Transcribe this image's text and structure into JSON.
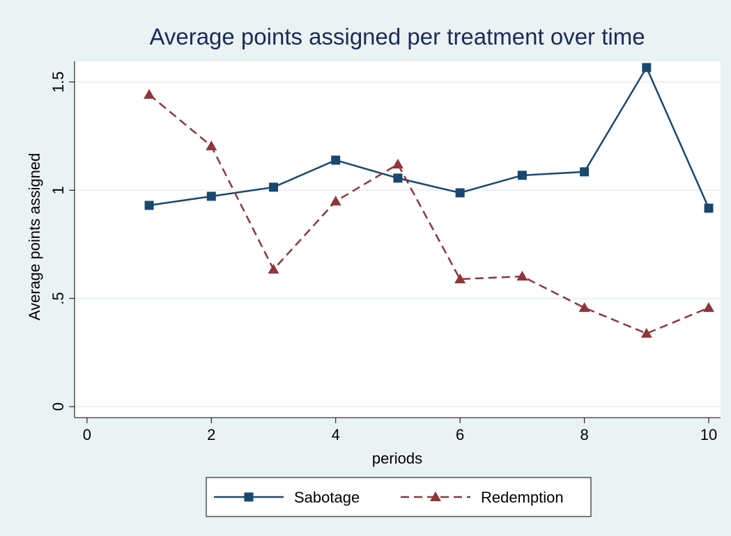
{
  "chart_data": {
    "type": "line",
    "title": "Average points assigned per treatment over time",
    "x_label": "periods",
    "y_label": "Average points assigned",
    "x": [
      1,
      2,
      3,
      4,
      5,
      6,
      7,
      8,
      9,
      10
    ],
    "series": [
      {
        "name": "Sabotage",
        "color": "#1a476f",
        "line_style": "solid",
        "marker": "square",
        "values": [
          0.93,
          0.972,
          1.014,
          1.139,
          1.056,
          0.988,
          1.069,
          1.085,
          1.567,
          0.917
        ]
      },
      {
        "name": "Redemption",
        "color": "#90353b",
        "line_style": "dashed",
        "marker": "triangle",
        "values": [
          1.442,
          1.204,
          0.634,
          0.949,
          1.12,
          0.589,
          0.602,
          0.457,
          0.338,
          0.457
        ]
      }
    ],
    "xlim": [
      -0.2,
      10.19
    ],
    "ylim": [
      -0.051,
      1.596
    ],
    "xticks": [
      0,
      2,
      4,
      6,
      8,
      10
    ],
    "yticks": [
      0,
      {
        "value": 0.5,
        "label": ".5"
      },
      1,
      {
        "value": 1.5,
        "label": "1.5"
      }
    ],
    "grid": true,
    "legend": "bottom"
  }
}
